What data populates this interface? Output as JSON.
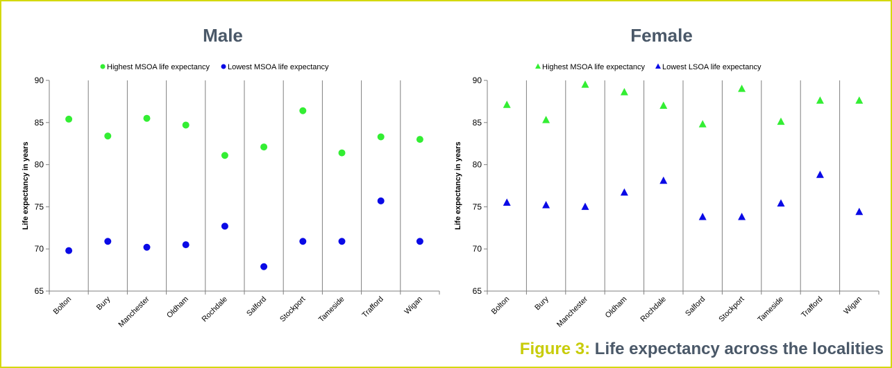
{
  "caption": {
    "label": "Figure 3:",
    "text": "Life expectancy across the localities"
  },
  "colors": {
    "frame": "#d4d90e",
    "title": "#4a5868",
    "caption_label": "#c8cc0a",
    "highest": "#33ee33",
    "lowest": "#0a0ae6",
    "gridline": "#7f7f7f"
  },
  "chart_data": [
    {
      "type": "scatter",
      "title": "Male",
      "ylabel": "Life expectancy in years",
      "xlabel": "",
      "ylim": [
        65,
        90
      ],
      "yticks": [
        65,
        70,
        75,
        80,
        85,
        90
      ],
      "categories": [
        "Bolton",
        "Bury",
        "Manchester",
        "Oldham",
        "Rochdale",
        "Salford",
        "Stockport",
        "Tameside",
        "Trafford",
        "Wigan"
      ],
      "marker": "circle",
      "legend_position": "top",
      "vertical_category_separators": true,
      "series": [
        {
          "name": "Highest MSOA life expectancy",
          "color": "#33ee33",
          "values": [
            85.4,
            83.4,
            85.5,
            84.7,
            81.1,
            82.1,
            86.4,
            81.4,
            83.3,
            83.0
          ]
        },
        {
          "name": "Lowest MSOA life expectancy",
          "color": "#0a0ae6",
          "values": [
            69.8,
            70.9,
            70.2,
            70.5,
            72.7,
            67.9,
            70.9,
            70.9,
            75.7,
            70.9
          ]
        }
      ]
    },
    {
      "type": "scatter",
      "title": "Female",
      "ylabel": "Life expectancy in years",
      "xlabel": "",
      "ylim": [
        65,
        90
      ],
      "yticks": [
        65,
        70,
        75,
        80,
        85,
        90
      ],
      "categories": [
        "Bolton",
        "Bury",
        "Manchester",
        "Oldham",
        "Rochdale",
        "Salford",
        "Stockport",
        "Tameside",
        "Trafford",
        "Wigan"
      ],
      "marker": "triangle",
      "legend_position": "top",
      "vertical_category_separators": true,
      "series": [
        {
          "name": "Highest MSOA life expectancy",
          "color": "#33ee33",
          "values": [
            87.1,
            85.3,
            89.5,
            88.6,
            87.0,
            84.8,
            89.0,
            85.1,
            87.6,
            87.6
          ]
        },
        {
          "name": "Lowest LSOA life expectancy",
          "color": "#0a0ae6",
          "values": [
            75.5,
            75.2,
            75.0,
            76.7,
            78.1,
            73.8,
            73.8,
            75.4,
            78.8,
            74.4
          ]
        }
      ]
    }
  ]
}
